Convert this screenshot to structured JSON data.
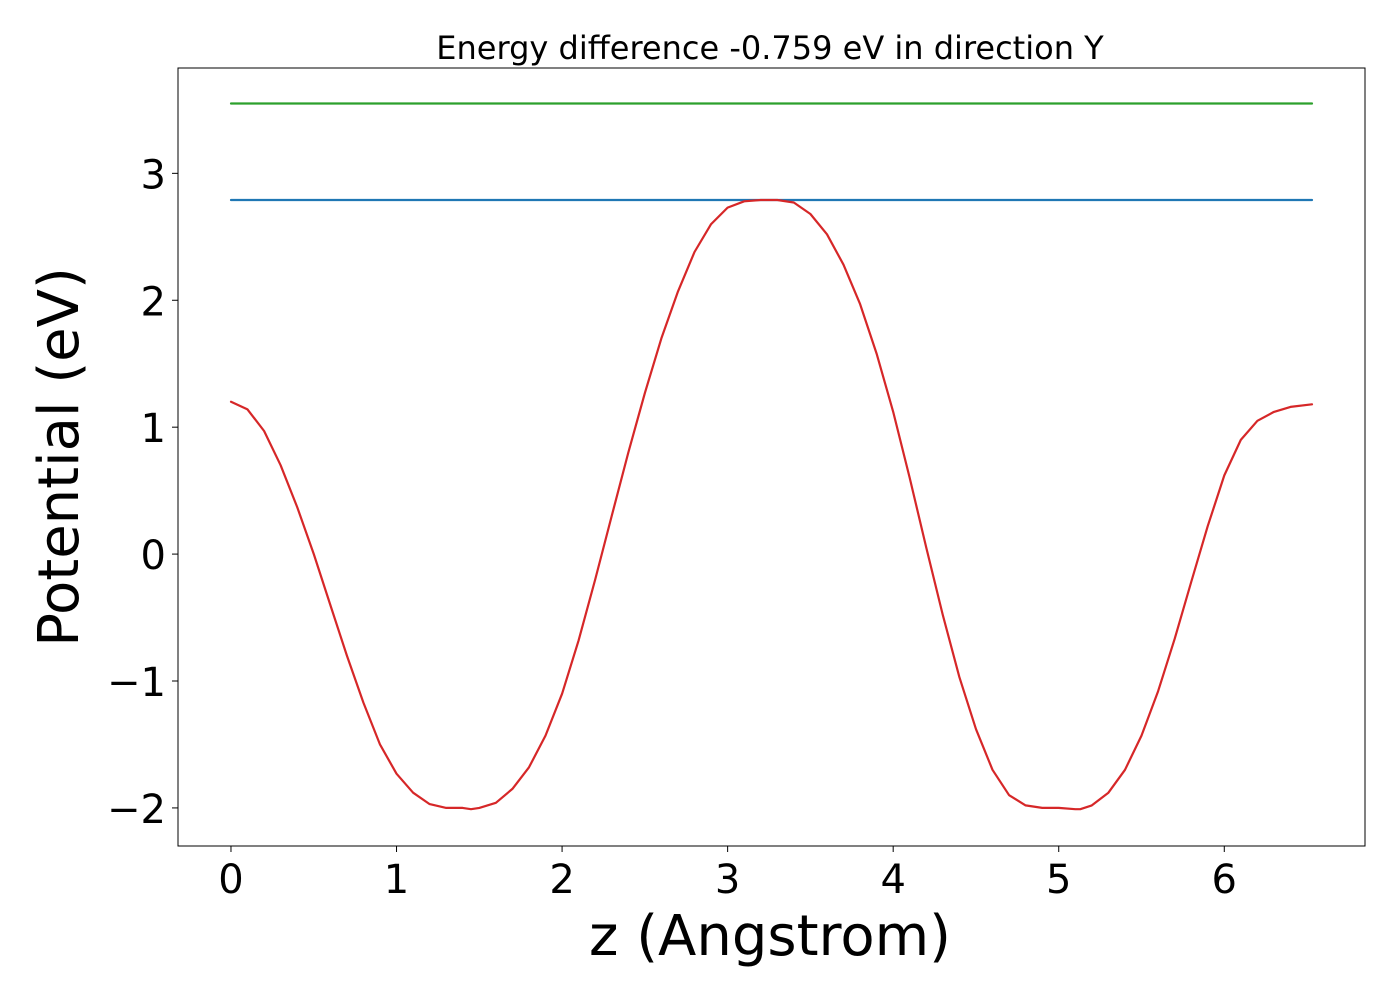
{
  "chart_data": {
    "type": "line",
    "title": "Energy difference -0.759 eV in direction Y",
    "xlabel": "z (Angstrom)",
    "ylabel": "Potential (eV)",
    "xlim": [
      -0.32,
      6.85
    ],
    "ylim": [
      -2.3,
      3.83
    ],
    "xticks": [
      0,
      1,
      2,
      3,
      4,
      5,
      6
    ],
    "xtick_labels": [
      "0",
      "1",
      "2",
      "3",
      "4",
      "5",
      "6"
    ],
    "yticks": [
      -2,
      -1,
      0,
      1,
      2,
      3
    ],
    "ytick_labels": [
      "−2",
      "−1",
      "0",
      "1",
      "2",
      "3"
    ],
    "grid": false,
    "series": [
      {
        "color": "#2ca02c",
        "x": [
          0,
          6.53
        ],
        "y": [
          3.55,
          3.55
        ]
      },
      {
        "color": "#1f77b4",
        "x": [
          0,
          6.53
        ],
        "y": [
          2.79,
          2.79
        ]
      },
      {
        "color": "#d62728",
        "x": [
          0,
          0.1,
          0.2,
          0.3,
          0.4,
          0.5,
          0.6,
          0.7,
          0.8,
          0.9,
          1.0,
          1.1,
          1.2,
          1.3,
          1.4,
          1.45,
          1.5,
          1.6,
          1.7,
          1.8,
          1.9,
          2.0,
          2.1,
          2.2,
          2.3,
          2.4,
          2.5,
          2.6,
          2.7,
          2.8,
          2.9,
          3.0,
          3.1,
          3.2,
          3.3,
          3.4,
          3.5,
          3.6,
          3.7,
          3.8,
          3.9,
          4.0,
          4.1,
          4.2,
          4.3,
          4.4,
          4.5,
          4.6,
          4.7,
          4.8,
          4.9,
          5.0,
          5.1,
          5.13,
          5.2,
          5.3,
          5.4,
          5.5,
          5.6,
          5.7,
          5.8,
          5.9,
          6.0,
          6.1,
          6.2,
          6.3,
          6.4,
          6.53
        ],
        "y": [
          1.2,
          1.14,
          0.97,
          0.7,
          0.37,
          0.0,
          -0.4,
          -0.8,
          -1.17,
          -1.5,
          -1.73,
          -1.88,
          -1.97,
          -2.0,
          -2.0,
          -2.01,
          -2.0,
          -1.96,
          -1.85,
          -1.68,
          -1.43,
          -1.1,
          -0.68,
          -0.2,
          0.3,
          0.8,
          1.27,
          1.7,
          2.07,
          2.38,
          2.6,
          2.73,
          2.78,
          2.79,
          2.79,
          2.77,
          2.68,
          2.52,
          2.28,
          1.97,
          1.58,
          1.12,
          0.6,
          0.05,
          -0.48,
          -0.97,
          -1.38,
          -1.7,
          -1.9,
          -1.98,
          -2.0,
          -2.0,
          -2.01,
          -2.01,
          -1.98,
          -1.88,
          -1.7,
          -1.43,
          -1.08,
          -0.67,
          -0.22,
          0.22,
          0.62,
          0.9,
          1.05,
          1.12,
          1.16,
          1.18
        ]
      }
    ]
  }
}
